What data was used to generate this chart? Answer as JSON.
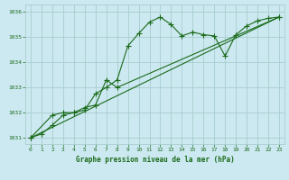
{
  "title": "Graphe pression niveau de la mer (hPa)",
  "bg_color": "#cce8f0",
  "grid_color": "#a8cece",
  "line_color": "#1a6b1a",
  "marker_color": "#1a6b1a",
  "xlim": [
    -0.5,
    23.5
  ],
  "ylim": [
    1030.75,
    1036.3
  ],
  "yticks": [
    1031,
    1032,
    1033,
    1034,
    1035,
    1036
  ],
  "xticks": [
    0,
    1,
    2,
    3,
    4,
    5,
    6,
    7,
    8,
    9,
    10,
    11,
    12,
    13,
    14,
    15,
    16,
    17,
    18,
    19,
    20,
    21,
    22,
    23
  ],
  "series1_x": [
    0,
    1,
    2,
    3,
    4,
    5,
    6,
    7,
    8,
    9,
    10,
    11,
    12,
    13,
    14,
    15,
    16,
    17,
    18,
    19,
    20,
    21,
    22,
    23
  ],
  "series1_y": [
    1031.0,
    1031.15,
    1031.5,
    1031.9,
    1032.0,
    1032.1,
    1032.75,
    1033.0,
    1033.3,
    1034.65,
    1035.15,
    1035.6,
    1035.8,
    1035.5,
    1035.05,
    1035.2,
    1035.1,
    1035.05,
    1034.25,
    1035.1,
    1035.45,
    1035.65,
    1035.75,
    1035.8
  ],
  "series2_x": [
    0,
    2,
    3,
    4,
    5,
    6,
    7,
    8,
    23
  ],
  "series2_y": [
    1031.0,
    1031.9,
    1032.0,
    1032.0,
    1032.2,
    1032.3,
    1033.3,
    1033.0,
    1035.8
  ],
  "trend_x": [
    0,
    23
  ],
  "trend_y": [
    1031.0,
    1035.8
  ]
}
